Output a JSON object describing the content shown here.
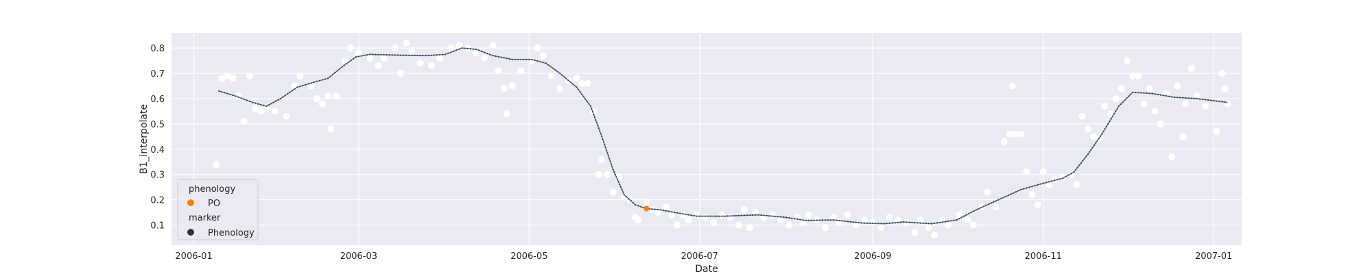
{
  "chart_data": {
    "type": "scatter",
    "xlabel": "Date",
    "ylabel": "B1_interpolate",
    "xlim": [
      "2005-12-24",
      "2007-01-11"
    ],
    "ylim": [
      0.02,
      0.86
    ],
    "x_ticks": [
      "2006-01",
      "2006-03",
      "2006-05",
      "2006-07",
      "2006-09",
      "2006-11",
      "2007-01"
    ],
    "y_ticks": [
      0.1,
      0.2,
      0.3,
      0.4,
      0.5,
      0.6,
      0.7,
      0.8
    ],
    "grid": true,
    "background": "#eaeaf2",
    "legend": {
      "position": "lower-left",
      "groups": [
        {
          "title": "phenology",
          "entries": [
            {
              "label": "PO",
              "color": "#ff7f0e",
              "marker": "circle"
            }
          ]
        },
        {
          "title": "marker",
          "entries": [
            {
              "label": "Phenology",
              "color": "#333333",
              "marker": "circle"
            }
          ]
        }
      ]
    },
    "series": [
      {
        "role": "raw observations",
        "kind": "scatter",
        "color": "#ffffff",
        "points": [
          [
            "2006-01-09",
            0.34
          ],
          [
            "2006-01-11",
            0.68
          ],
          [
            "2006-01-13",
            0.69
          ],
          [
            "2006-01-15",
            0.68
          ],
          [
            "2006-01-17",
            0.61
          ],
          [
            "2006-01-19",
            0.51
          ],
          [
            "2006-01-21",
            0.69
          ],
          [
            "2006-01-23",
            0.56
          ],
          [
            "2006-01-25",
            0.55
          ],
          [
            "2006-01-27",
            0.56
          ],
          [
            "2006-01-30",
            0.55
          ],
          [
            "2006-02-03",
            0.53
          ],
          [
            "2006-02-06",
            0.65
          ],
          [
            "2006-02-08",
            0.69
          ],
          [
            "2006-02-12",
            0.65
          ],
          [
            "2006-02-14",
            0.6
          ],
          [
            "2006-02-16",
            0.58
          ],
          [
            "2006-02-18",
            0.61
          ],
          [
            "2006-02-19",
            0.48
          ],
          [
            "2006-02-21",
            0.61
          ],
          [
            "2006-02-24",
            0.75
          ],
          [
            "2006-02-26",
            0.8
          ],
          [
            "2006-03-01",
            0.78
          ],
          [
            "2006-03-05",
            0.76
          ],
          [
            "2006-03-08",
            0.73
          ],
          [
            "2006-03-10",
            0.76
          ],
          [
            "2006-03-14",
            0.8
          ],
          [
            "2006-03-16",
            0.7
          ],
          [
            "2006-03-18",
            0.82
          ],
          [
            "2006-03-20",
            0.79
          ],
          [
            "2006-03-23",
            0.74
          ],
          [
            "2006-03-27",
            0.73
          ],
          [
            "2006-03-30",
            0.76
          ],
          [
            "2006-04-03",
            0.8
          ],
          [
            "2006-04-06",
            0.81
          ],
          [
            "2006-04-09",
            0.8
          ],
          [
            "2006-04-12",
            0.78
          ],
          [
            "2006-04-15",
            0.76
          ],
          [
            "2006-04-18",
            0.81
          ],
          [
            "2006-04-20",
            0.71
          ],
          [
            "2006-04-22",
            0.64
          ],
          [
            "2006-04-23",
            0.54
          ],
          [
            "2006-04-25",
            0.65
          ],
          [
            "2006-04-28",
            0.71
          ],
          [
            "2006-05-02",
            0.75
          ],
          [
            "2006-05-04",
            0.8
          ],
          [
            "2006-05-06",
            0.77
          ],
          [
            "2006-05-09",
            0.69
          ],
          [
            "2006-05-12",
            0.64
          ],
          [
            "2006-05-15",
            0.67
          ],
          [
            "2006-05-18",
            0.68
          ],
          [
            "2006-05-20",
            0.66
          ],
          [
            "2006-05-22",
            0.66
          ],
          [
            "2006-05-24",
            0.55
          ],
          [
            "2006-05-26",
            0.3
          ],
          [
            "2006-05-27",
            0.36
          ],
          [
            "2006-05-29",
            0.3
          ],
          [
            "2006-05-31",
            0.23
          ],
          [
            "2006-06-02",
            0.29
          ],
          [
            "2006-06-04",
            0.21
          ],
          [
            "2006-06-06",
            0.2
          ],
          [
            "2006-06-08",
            0.13
          ],
          [
            "2006-06-09",
            0.12
          ],
          [
            "2006-06-12",
            0.19
          ],
          [
            "2006-06-14",
            0.16
          ],
          [
            "2006-06-16",
            0.15
          ],
          [
            "2006-06-19",
            0.17
          ],
          [
            "2006-06-21",
            0.14
          ],
          [
            "2006-06-23",
            0.1
          ],
          [
            "2006-06-25",
            0.14
          ],
          [
            "2006-06-27",
            0.12
          ],
          [
            "2006-06-30",
            0.14
          ],
          [
            "2006-07-03",
            0.13
          ],
          [
            "2006-07-06",
            0.11
          ],
          [
            "2006-07-09",
            0.14
          ],
          [
            "2006-07-12",
            0.13
          ],
          [
            "2006-07-15",
            0.1
          ],
          [
            "2006-07-17",
            0.16
          ],
          [
            "2006-07-19",
            0.09
          ],
          [
            "2006-07-21",
            0.15
          ],
          [
            "2006-07-24",
            0.13
          ],
          [
            "2006-07-27",
            0.14
          ],
          [
            "2006-07-30",
            0.12
          ],
          [
            "2006-08-02",
            0.1
          ],
          [
            "2006-08-05",
            0.13
          ],
          [
            "2006-08-07",
            0.11
          ],
          [
            "2006-08-09",
            0.14
          ],
          [
            "2006-08-12",
            0.12
          ],
          [
            "2006-08-15",
            0.09
          ],
          [
            "2006-08-18",
            0.13
          ],
          [
            "2006-08-20",
            0.11
          ],
          [
            "2006-08-23",
            0.14
          ],
          [
            "2006-08-26",
            0.1
          ],
          [
            "2006-08-29",
            0.12
          ],
          [
            "2006-09-01",
            0.11
          ],
          [
            "2006-09-04",
            0.09
          ],
          [
            "2006-09-07",
            0.13
          ],
          [
            "2006-09-10",
            0.12
          ],
          [
            "2006-09-13",
            0.11
          ],
          [
            "2006-09-16",
            0.07
          ],
          [
            "2006-09-18",
            0.12
          ],
          [
            "2006-09-21",
            0.09
          ],
          [
            "2006-09-23",
            0.06
          ],
          [
            "2006-09-26",
            0.12
          ],
          [
            "2006-09-28",
            0.1
          ],
          [
            "2006-10-02",
            0.14
          ],
          [
            "2006-10-05",
            0.12
          ],
          [
            "2006-10-07",
            0.1
          ],
          [
            "2006-10-10",
            0.17
          ],
          [
            "2006-10-12",
            0.23
          ],
          [
            "2006-10-15",
            0.17
          ],
          [
            "2006-10-18",
            0.43
          ],
          [
            "2006-10-20",
            0.46
          ],
          [
            "2006-10-21",
            0.65
          ],
          [
            "2006-10-22",
            0.46
          ],
          [
            "2006-10-24",
            0.46
          ],
          [
            "2006-10-26",
            0.31
          ],
          [
            "2006-10-28",
            0.22
          ],
          [
            "2006-10-30",
            0.18
          ],
          [
            "2006-11-01",
            0.31
          ],
          [
            "2006-11-03",
            0.26
          ],
          [
            "2006-11-05",
            0.28
          ],
          [
            "2006-11-08",
            0.29
          ],
          [
            "2006-11-11",
            0.3
          ],
          [
            "2006-11-13",
            0.26
          ],
          [
            "2006-11-15",
            0.53
          ],
          [
            "2006-11-17",
            0.48
          ],
          [
            "2006-11-19",
            0.45
          ],
          [
            "2006-11-21",
            0.44
          ],
          [
            "2006-11-23",
            0.57
          ],
          [
            "2006-11-25",
            0.54
          ],
          [
            "2006-11-27",
            0.6
          ],
          [
            "2006-11-29",
            0.64
          ],
          [
            "2006-12-01",
            0.75
          ],
          [
            "2006-12-03",
            0.69
          ],
          [
            "2006-12-05",
            0.69
          ],
          [
            "2006-12-07",
            0.58
          ],
          [
            "2006-12-09",
            0.64
          ],
          [
            "2006-12-11",
            0.55
          ],
          [
            "2006-12-13",
            0.5
          ],
          [
            "2006-12-15",
            0.62
          ],
          [
            "2006-12-17",
            0.37
          ],
          [
            "2006-12-19",
            0.65
          ],
          [
            "2006-12-21",
            0.45
          ],
          [
            "2006-12-22",
            0.58
          ],
          [
            "2006-12-24",
            0.72
          ],
          [
            "2006-12-26",
            0.61
          ],
          [
            "2006-12-29",
            0.57
          ],
          [
            "2007-01-02",
            0.47
          ],
          [
            "2007-01-04",
            0.7
          ],
          [
            "2007-01-05",
            0.64
          ],
          [
            "2007-01-06",
            0.58
          ]
        ]
      },
      {
        "role": "interpolated curve",
        "kind": "line",
        "color": "#5a7b8c",
        "points": [
          [
            "2006-01-10",
            0.63
          ],
          [
            "2006-01-16",
            0.61
          ],
          [
            "2006-01-22",
            0.585
          ],
          [
            "2006-01-27",
            0.57
          ],
          [
            "2006-02-01",
            0.6
          ],
          [
            "2006-02-07",
            0.645
          ],
          [
            "2006-02-13",
            0.665
          ],
          [
            "2006-02-18",
            0.68
          ],
          [
            "2006-02-23",
            0.725
          ],
          [
            "2006-02-28",
            0.765
          ],
          [
            "2006-03-05",
            0.775
          ],
          [
            "2006-03-15",
            0.772
          ],
          [
            "2006-03-25",
            0.77
          ],
          [
            "2006-04-01",
            0.775
          ],
          [
            "2006-04-07",
            0.8
          ],
          [
            "2006-04-12",
            0.795
          ],
          [
            "2006-04-18",
            0.77
          ],
          [
            "2006-04-25",
            0.755
          ],
          [
            "2006-05-02",
            0.755
          ],
          [
            "2006-05-07",
            0.74
          ],
          [
            "2006-05-12",
            0.7
          ],
          [
            "2006-05-18",
            0.645
          ],
          [
            "2006-05-23",
            0.57
          ],
          [
            "2006-05-27",
            0.45
          ],
          [
            "2006-05-31",
            0.32
          ],
          [
            "2006-06-04",
            0.22
          ],
          [
            "2006-06-08",
            0.18
          ],
          [
            "2006-06-12",
            0.165
          ],
          [
            "2006-06-17",
            0.16
          ],
          [
            "2006-06-23",
            0.148
          ],
          [
            "2006-06-30",
            0.135
          ],
          [
            "2006-07-10",
            0.135
          ],
          [
            "2006-07-22",
            0.14
          ],
          [
            "2006-08-01",
            0.13
          ],
          [
            "2006-08-08",
            0.118
          ],
          [
            "2006-08-18",
            0.12
          ],
          [
            "2006-08-28",
            0.108
          ],
          [
            "2006-09-05",
            0.105
          ],
          [
            "2006-09-12",
            0.112
          ],
          [
            "2006-09-22",
            0.105
          ],
          [
            "2006-10-01",
            0.12
          ],
          [
            "2006-10-08",
            0.16
          ],
          [
            "2006-10-16",
            0.2
          ],
          [
            "2006-10-24",
            0.24
          ],
          [
            "2006-11-01",
            0.265
          ],
          [
            "2006-11-08",
            0.285
          ],
          [
            "2006-11-12",
            0.31
          ],
          [
            "2006-11-17",
            0.38
          ],
          [
            "2006-11-22",
            0.46
          ],
          [
            "2006-11-28",
            0.57
          ],
          [
            "2006-12-03",
            0.625
          ],
          [
            "2006-12-10",
            0.62
          ],
          [
            "2006-12-18",
            0.605
          ],
          [
            "2006-12-26",
            0.6
          ],
          [
            "2007-01-06",
            0.585
          ]
        ]
      },
      {
        "role": "phenology point",
        "name": "PO",
        "kind": "scatter",
        "color": "#ff7f0e",
        "points": [
          [
            "2006-06-12",
            0.165
          ]
        ]
      }
    ]
  }
}
